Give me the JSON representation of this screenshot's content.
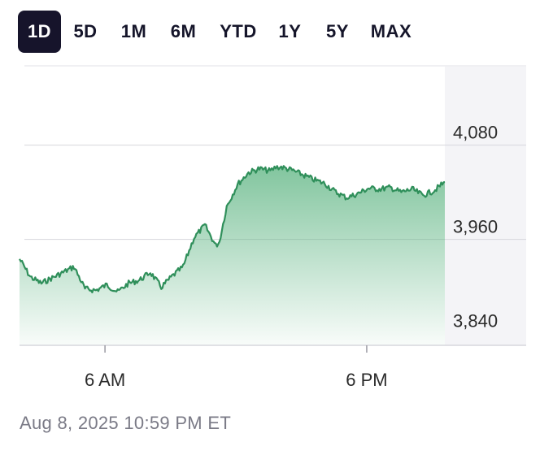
{
  "range_selector": {
    "options": [
      "1D",
      "5D",
      "1M",
      "6M",
      "YTD",
      "1Y",
      "5Y",
      "MAX"
    ],
    "selected": "1D"
  },
  "timestamp": "Aug 8, 2025 10:59 PM ET",
  "colors": {
    "line": "#2f8f5a",
    "fill_top": "#58b27e",
    "gridline": "#d6d6dc",
    "selected_tab_bg": "#16142b",
    "axis_label": "#2a2a2a"
  },
  "chart_data": {
    "type": "area",
    "title": "",
    "xlabel": "",
    "ylabel": "",
    "x_ticks": [
      "6 AM",
      "6 PM"
    ],
    "y_ticks": [
      3840,
      3960,
      4080
    ],
    "y_tick_labels": [
      "3,840",
      "3,960",
      "4,080"
    ],
    "ylim": [
      3825,
      4180
    ],
    "grid": true,
    "series": [
      {
        "x": [
          "01:00",
          "01:30",
          "02:00",
          "02:30",
          "03:00",
          "03:30",
          "04:00",
          "04:30",
          "05:00",
          "05:30",
          "06:00",
          "06:30",
          "07:00",
          "07:30",
          "08:00",
          "08:30",
          "09:00",
          "09:30",
          "10:00",
          "10:10",
          "10:30",
          "11:00",
          "11:30",
          "12:00",
          "12:30",
          "12:45",
          "13:00",
          "13:30",
          "14:00",
          "14:30",
          "15:00",
          "15:30",
          "16:00",
          "16:30",
          "17:00",
          "17:30",
          "18:00",
          "18:30",
          "19:00",
          "19:30",
          "20:00",
          "20:30"
        ],
        "values": [
          3935,
          3912,
          3904,
          3911,
          3918,
          3925,
          3897,
          3895,
          3902,
          3893,
          3904,
          3908,
          3918,
          3899,
          3913,
          3925,
          3962,
          3978,
          3952,
          3957,
          4002,
          4030,
          4045,
          4050,
          4047,
          4052,
          4052,
          4048,
          4042,
          4036,
          4031,
          4020,
          4013,
          4018,
          4025,
          4024,
          4026,
          4020,
          4024,
          4016,
          4022,
          4033
        ]
      }
    ]
  }
}
